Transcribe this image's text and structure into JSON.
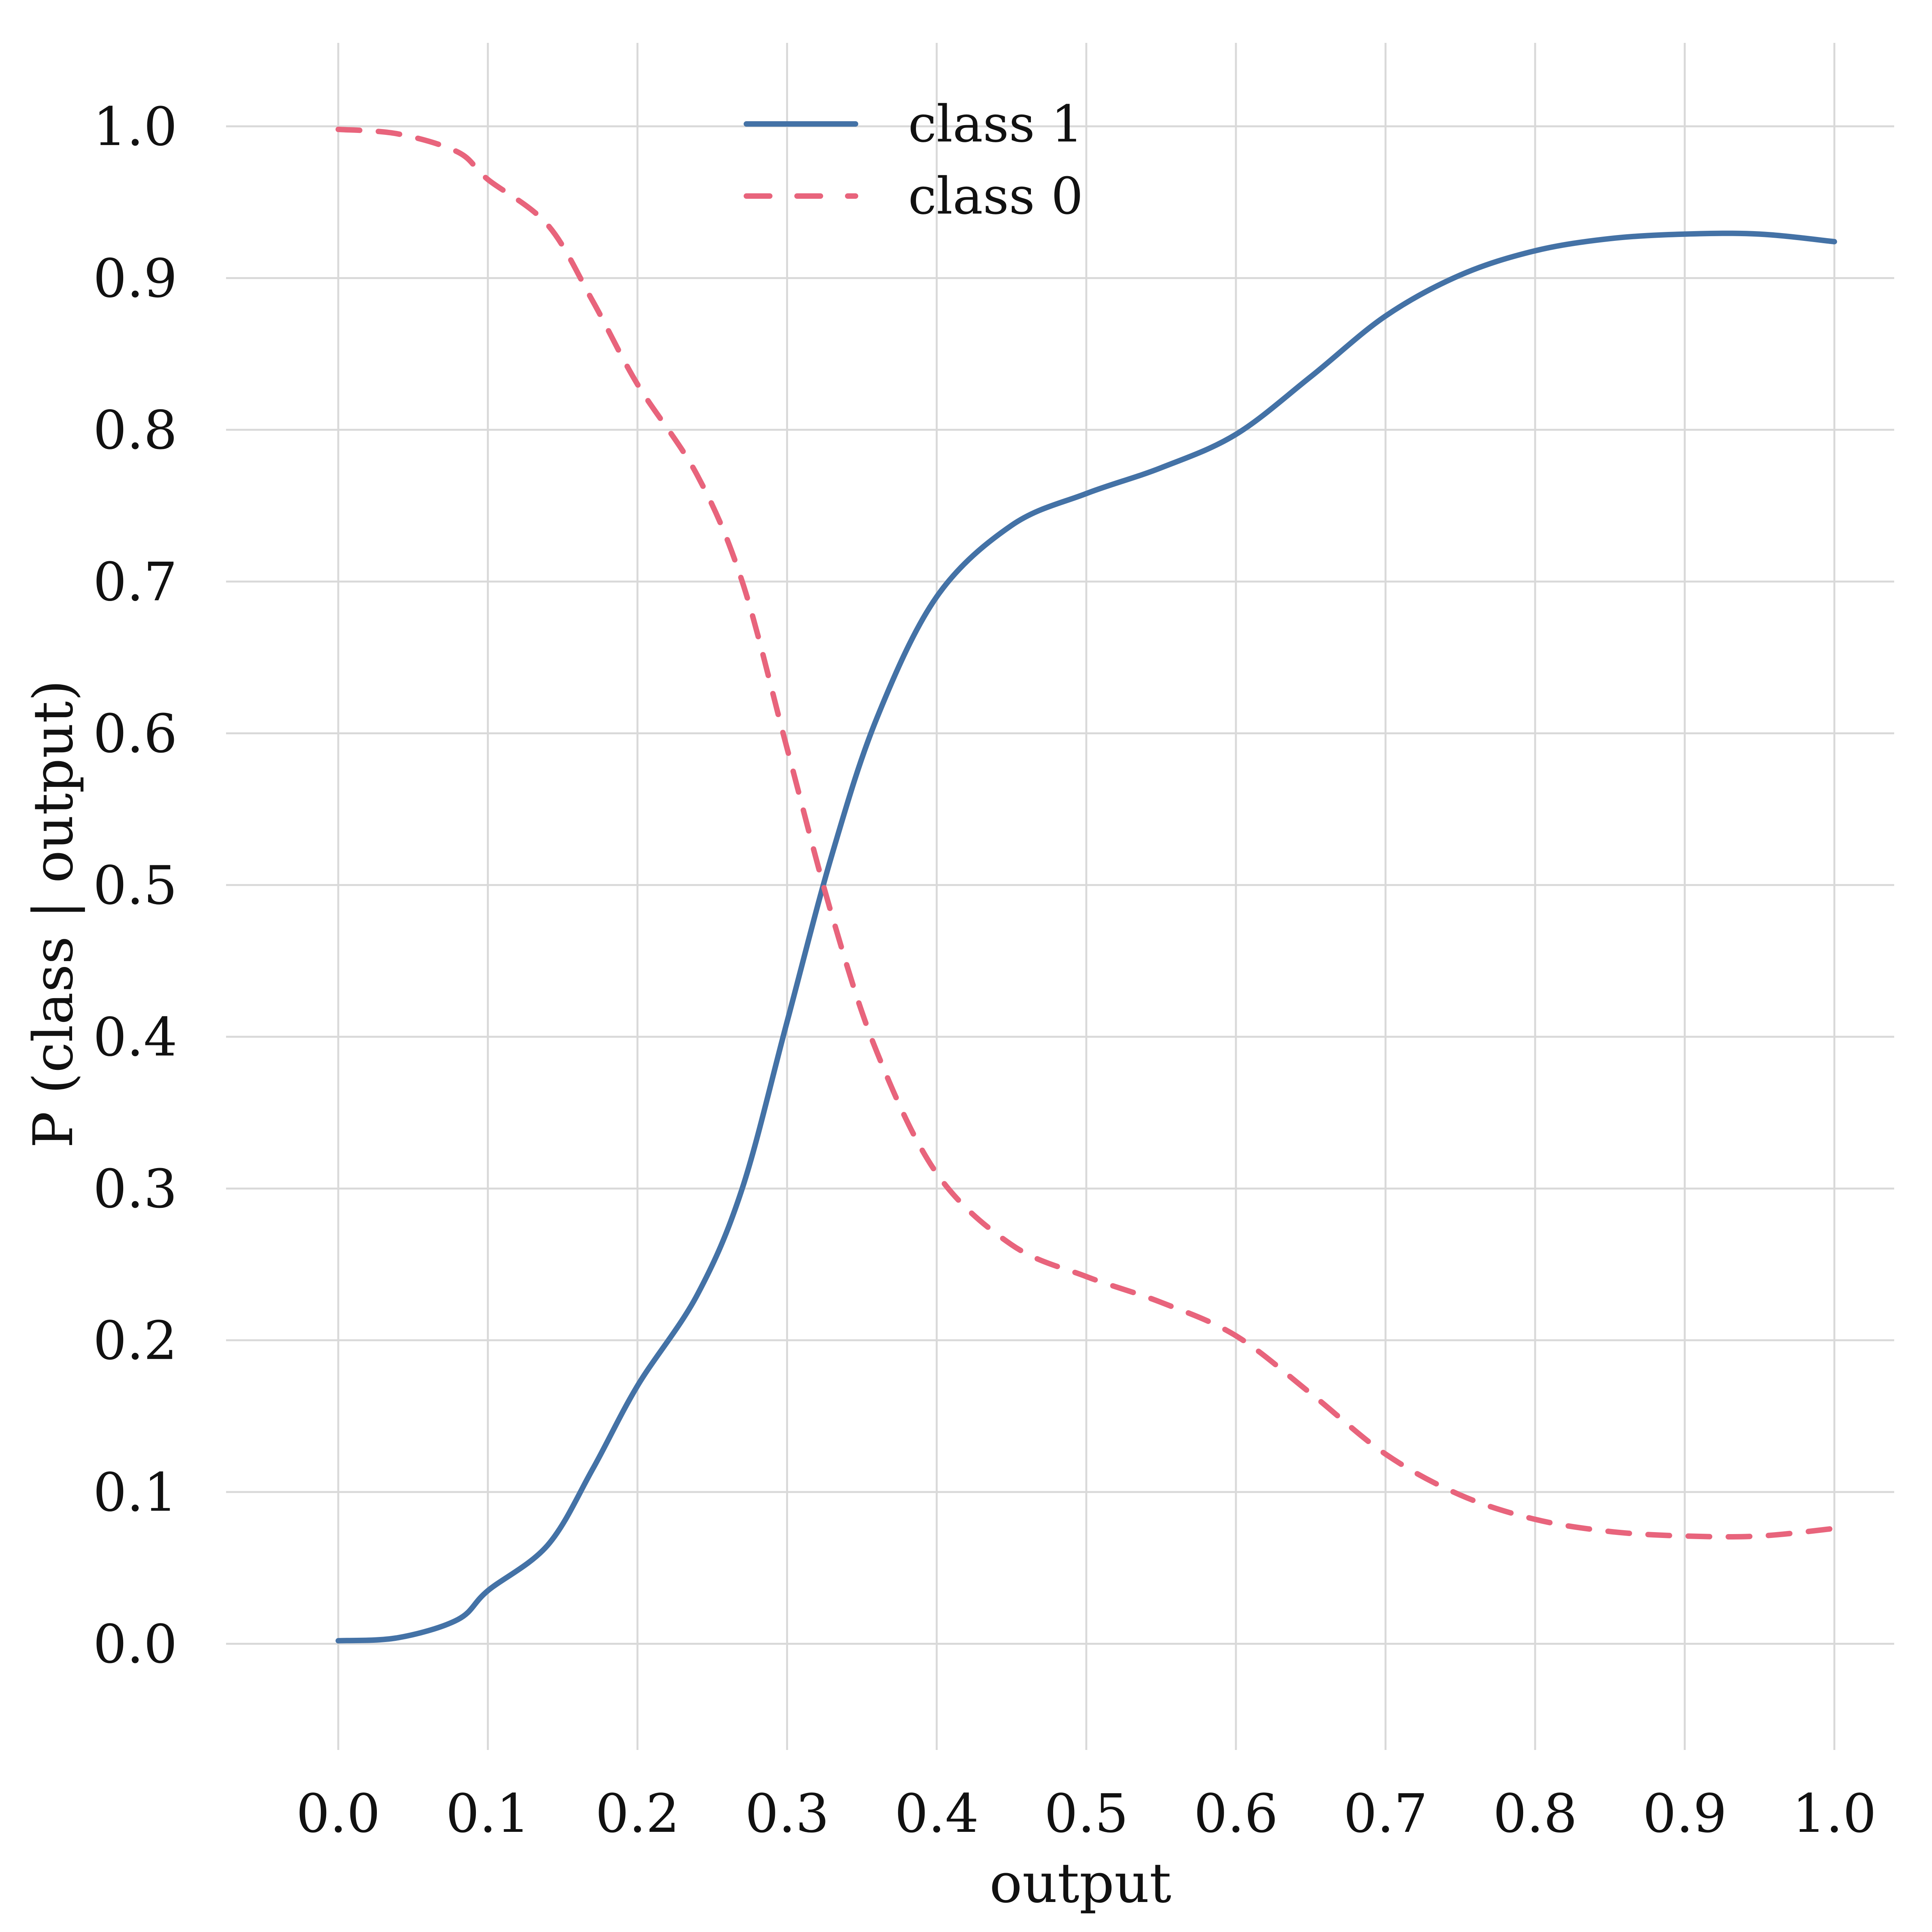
{
  "chart_data": {
    "type": "line",
    "title": "",
    "xlabel": "output",
    "ylabel": "P (class | output)",
    "xlim": [
      -0.075,
      1.04
    ],
    "ylim": [
      -0.07,
      1.055
    ],
    "grid": true,
    "legend_position": "top-center",
    "xticks": [
      0.0,
      0.1,
      0.2,
      0.3,
      0.4,
      0.5,
      0.6,
      0.7,
      0.8,
      0.9,
      1.0
    ],
    "xtick_labels": [
      "0.0",
      "0.1",
      "0.2",
      "0.3",
      "0.4",
      "0.5",
      "0.6",
      "0.7",
      "0.8",
      "0.9",
      "1.0"
    ],
    "yticks": [
      0.0,
      0.1,
      0.2,
      0.3,
      0.4,
      0.5,
      0.6,
      0.7,
      0.8,
      0.9,
      1.0
    ],
    "ytick_labels": [
      "0.0",
      "0.1",
      "0.2",
      "0.3",
      "0.4",
      "0.5",
      "0.6",
      "0.7",
      "0.8",
      "0.9",
      "1.0"
    ],
    "x": [
      0.0,
      0.04,
      0.08,
      0.1,
      0.14,
      0.17,
      0.2,
      0.24,
      0.27,
      0.3,
      0.33,
      0.36,
      0.4,
      0.45,
      0.5,
      0.55,
      0.6,
      0.65,
      0.7,
      0.75,
      0.8,
      0.85,
      0.9,
      0.95,
      1.0
    ],
    "series": [
      {
        "name": "class 1",
        "style": "solid",
        "color": "#4472a6",
        "values": [
          0.002,
          0.004,
          0.016,
          0.035,
          0.065,
          0.115,
          0.17,
          0.23,
          0.3,
          0.41,
          0.52,
          0.61,
          0.69,
          0.737,
          0.758,
          0.775,
          0.797,
          0.835,
          0.875,
          0.902,
          0.918,
          0.926,
          0.929,
          0.929,
          0.924
        ]
      },
      {
        "name": "class 0",
        "style": "dashed",
        "color": "#e8647c",
        "values": [
          0.998,
          0.995,
          0.983,
          0.965,
          0.935,
          0.885,
          0.83,
          0.77,
          0.7,
          0.59,
          0.48,
          0.39,
          0.31,
          0.263,
          0.242,
          0.225,
          0.203,
          0.165,
          0.125,
          0.098,
          0.082,
          0.074,
          0.071,
          0.071,
          0.076
        ]
      }
    ]
  }
}
